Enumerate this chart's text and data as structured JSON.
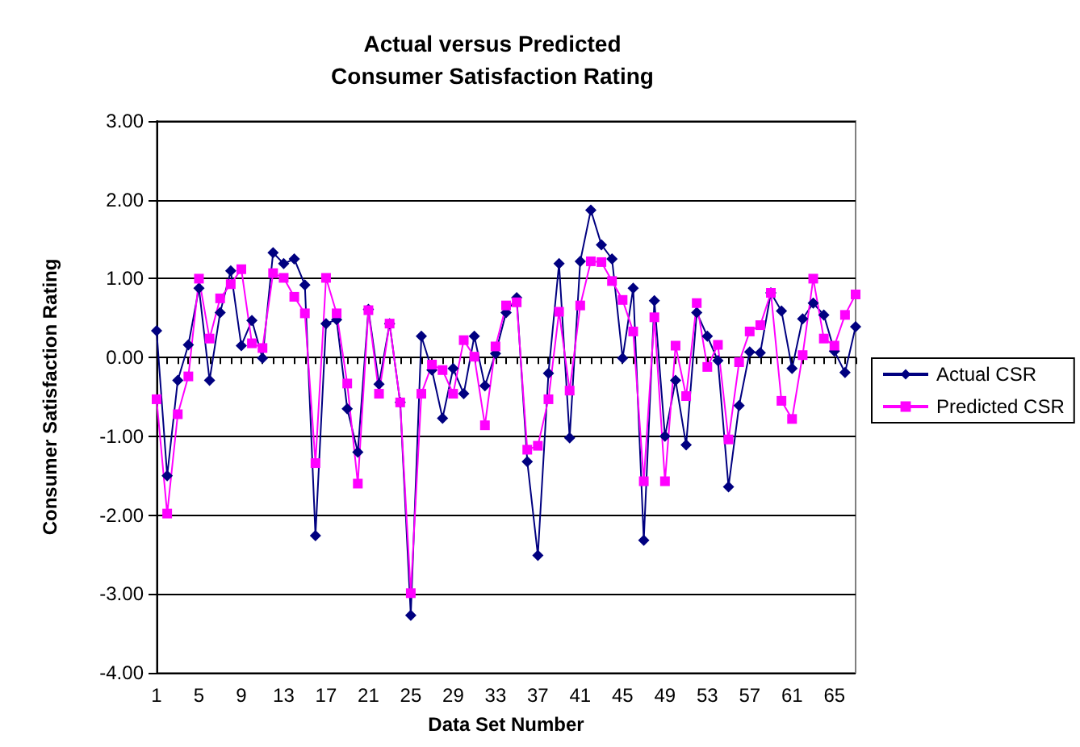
{
  "chart_data": {
    "type": "line",
    "title": "Actual versus Predicted\nConsumer Satisfaction Rating",
    "xlabel": "Data Set Number",
    "ylabel": "Consumer Satisfaction Rating",
    "categories": [
      "1",
      null,
      null,
      null,
      "5",
      null,
      null,
      null,
      "9",
      null,
      null,
      null,
      "13",
      null,
      null,
      null,
      "17",
      null,
      null,
      null,
      "21",
      null,
      null,
      null,
      "25",
      null,
      null,
      null,
      "29",
      null,
      null,
      null,
      "33",
      null,
      null,
      null,
      "37",
      null,
      null,
      null,
      "41",
      null,
      null,
      null,
      "45",
      null,
      null,
      null,
      "49",
      null,
      null,
      null,
      "53",
      null,
      null,
      null,
      "57",
      null,
      null,
      null,
      "61",
      null,
      null,
      null,
      "65",
      null,
      null
    ],
    "series": [
      {
        "name": "Actual CSR",
        "color": "#000080",
        "marker": "diamond",
        "values": [
          0.34,
          -1.5,
          -0.29,
          0.16,
          0.88,
          -0.29,
          0.57,
          1.1,
          0.15,
          0.47,
          -0.01,
          1.33,
          1.19,
          1.25,
          0.92,
          -2.26,
          0.43,
          0.48,
          -0.65,
          -1.2,
          0.61,
          -0.34,
          0.43,
          -0.57,
          -3.27,
          0.27,
          -0.16,
          -0.77,
          -0.14,
          -0.46,
          0.27,
          -0.36,
          0.05,
          0.57,
          0.76,
          -1.32,
          -2.51,
          -0.2,
          1.19,
          -1.02,
          1.22,
          1.87,
          1.43,
          1.25,
          -0.01,
          0.88,
          -2.32,
          0.72,
          -1.0,
          -0.29,
          -1.11,
          0.57,
          0.27,
          -0.04,
          -1.64,
          -0.61,
          0.07,
          0.06,
          0.82,
          0.59,
          -0.14,
          0.49,
          0.69,
          0.54,
          0.08,
          -0.19,
          0.39
        ]
      },
      {
        "name": "Predicted CSR",
        "color": "#ff00ff",
        "marker": "square",
        "values": [
          -0.53,
          -1.98,
          -0.72,
          -0.24,
          1.0,
          0.24,
          0.75,
          0.93,
          1.12,
          0.18,
          0.12,
          1.07,
          1.01,
          0.77,
          0.56,
          -1.34,
          1.01,
          0.56,
          -0.33,
          -1.6,
          0.6,
          -0.46,
          0.43,
          -0.57,
          -2.99,
          -0.46,
          -0.09,
          -0.16,
          -0.46,
          0.22,
          0.01,
          -0.86,
          0.14,
          0.66,
          0.7,
          -1.17,
          -1.12,
          -0.53,
          0.58,
          -0.42,
          0.66,
          1.22,
          1.21,
          0.97,
          0.73,
          0.33,
          -1.57,
          0.51,
          -1.57,
          0.15,
          -0.49,
          0.69,
          -0.12,
          0.16,
          -1.04,
          -0.06,
          0.33,
          0.41,
          0.82,
          -0.55,
          -0.78,
          0.03,
          1.0,
          0.24,
          0.15,
          0.54,
          0.8
        ]
      }
    ],
    "ylim": [
      -4,
      3
    ],
    "yticks": [
      {
        "value": -4,
        "label": "-4.00"
      },
      {
        "value": -3,
        "label": "-3.00"
      },
      {
        "value": -2,
        "label": "-2.00"
      },
      {
        "value": -1,
        "label": "-1.00"
      },
      {
        "value": 0,
        "label": "0.00"
      },
      {
        "value": 1,
        "label": "1.00"
      },
      {
        "value": 2,
        "label": "2.00"
      },
      {
        "value": 3,
        "label": "3.00"
      }
    ],
    "grid": "y",
    "legend": "right",
    "line_style": "solid"
  }
}
